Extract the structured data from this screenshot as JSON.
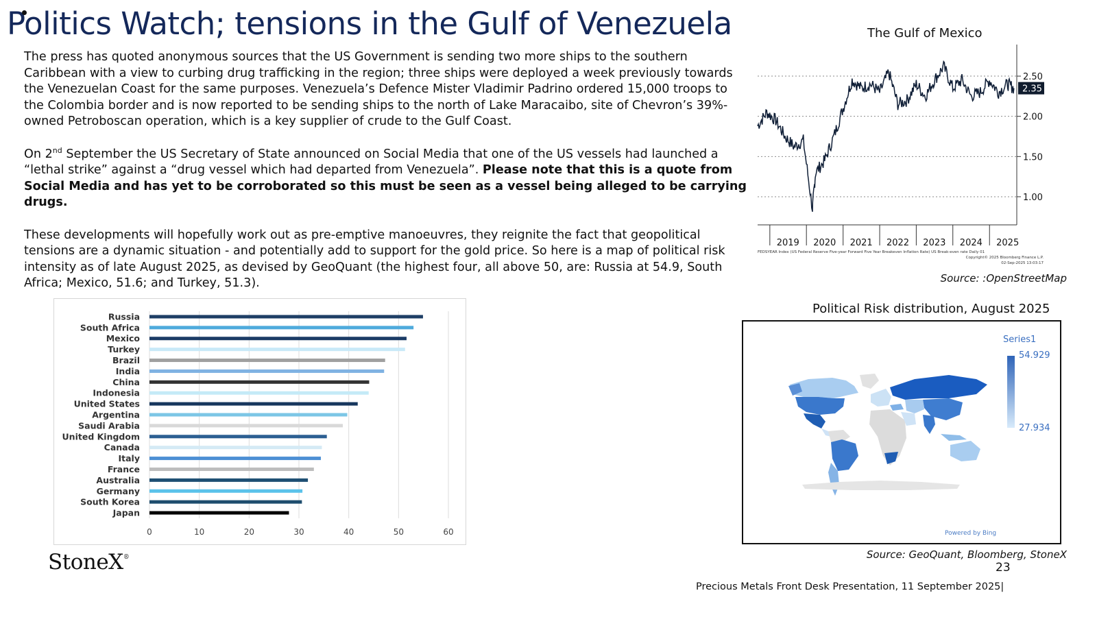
{
  "title": "Politics Watch; tensions in the Gulf of Venezuela",
  "paragraph1": "The press has quoted anonymous sources that the US Government is sending two more ships to the southern Caribbean with a view to curbing drug trafficking in the region; three ships were deployed a week previously towards the Venezuelan Coast for the same purposes. Venezuela’s Defence Mister Vladimir Padrino ordered 15,000 troops to the Colombia border and is now reported to be sending ships to the north of Lake Maracaibo, site of Chevron’s 39%-owned Petroboscan operation, which is a key supplier of crude to the Gulf Coast.",
  "paragraph2": {
    "prefix": "On 2",
    "sup": "nd",
    "text": " September the US Secretary of State announced on Social Media that one of the US vessels had  launched a “lethal strike” against a “drug vessel which had departed from Venezuela”.  ",
    "bold": "Please note that this is a quote from Social Media and has yet to be corroborated so this must be seen as a vessel being alleged to be carrying drugs."
  },
  "paragraph3": "These  developments will hopefully work out as pre-emptive manoeuvres,  they reignite the fact that geopolitical tensions are a dynamic situation - and potentially add to support for the gold price.  So here is a map of political risk intensity as of late August 2025, as devised by GeoQuant (the highest four, all above 50, are: Russia at 54.9, South Africa; Mexico, 51.6; and Turkey, 51.3).",
  "line_chart": {
    "title": "The Gulf of Mexico",
    "last_value_label": "2.35",
    "footnote_lines": [
      "FEDSYEAR Index (US Federal Reserve Five-year Forward Five Year Breakeven Inflation Rate) US Break-even rate  Daily 01",
      "Copyright© 2025 Bloomberg Finance L.P.",
      "02-Sep-2025 13:03:17"
    ],
    "source": "Source: :OpenStreetMap"
  },
  "map": {
    "title": "Political Risk distribution, August 2025",
    "legend_title": "Series1",
    "legend_max": "54.929",
    "legend_min": "27.934",
    "powered_by": "Powered by Bing",
    "source": "Source: GeoQuant, Bloomberg, StoneX"
  },
  "page_number": "23",
  "footer": "Precious Metals Front Desk Presentation, 11 September 2025|",
  "logo_text": "StoneX",
  "logo_mark": "®",
  "chart_data": [
    {
      "type": "line",
      "title": "The Gulf of Mexico",
      "x_tick_labels": [
        "2019",
        "2020",
        "2021",
        "2022",
        "2023",
        "2024",
        "2025"
      ],
      "y_tick_labels": [
        "1.00",
        "1.50",
        "2.00",
        "2.50"
      ],
      "ylim": [
        0.65,
        2.85
      ],
      "grid": true,
      "series": [
        {
          "x": [
            "2018-09",
            "2018-12",
            "2019-03",
            "2019-06",
            "2019-09",
            "2019-12",
            "2020-03",
            "2020-04",
            "2020-07",
            "2020-10",
            "2021-01",
            "2021-04",
            "2021-07",
            "2021-10",
            "2022-01",
            "2022-04",
            "2022-07",
            "2022-10",
            "2023-01",
            "2023-04",
            "2023-07",
            "2023-10",
            "2024-01",
            "2024-04",
            "2024-07",
            "2024-10",
            "2025-01",
            "2025-04",
            "2025-07",
            "2025-09"
          ],
          "values": [
            1.88,
            2.05,
            1.95,
            1.75,
            1.62,
            1.7,
            0.85,
            1.3,
            1.45,
            1.75,
            2.1,
            2.45,
            2.35,
            2.4,
            2.3,
            2.55,
            2.15,
            2.2,
            2.4,
            2.25,
            2.45,
            2.62,
            2.35,
            2.45,
            2.25,
            2.3,
            2.45,
            2.3,
            2.4,
            2.35
          ]
        }
      ]
    },
    {
      "type": "bar",
      "orientation": "horizontal",
      "categories": [
        "Russia",
        "South Africa",
        "Mexico",
        "Turkey",
        "Brazil",
        "India",
        "China",
        "Indonesia",
        "United States",
        "Argentina",
        "Saudi Arabia",
        "United Kingdom",
        "Canada",
        "Italy",
        "France",
        "Australia",
        "Germany",
        "South Korea",
        "Japan"
      ],
      "values": [
        54.9,
        53.0,
        51.6,
        51.3,
        47.3,
        47.1,
        44.1,
        44.0,
        41.8,
        39.7,
        38.8,
        35.6,
        34.6,
        34.4,
        33.0,
        31.8,
        30.7,
        30.6,
        28.0
      ],
      "colors": [
        "#1f3f66",
        "#4eaadc",
        "#1b3b66",
        "#c9e9f8",
        "#a0a0a0",
        "#7fb2e2",
        "#333333",
        "#c4eaf7",
        "#17375e",
        "#7cc6e6",
        "#d9d9d9",
        "#2c5f92",
        "#d4eaf5",
        "#4d8fd4",
        "#bdbdbd",
        "#1e4f73",
        "#5ac2ea",
        "#1e4d6e",
        "#050505"
      ],
      "x_tick_labels": [
        "0",
        "10",
        "20",
        "30",
        "40",
        "50",
        "60"
      ],
      "xlim": [
        0,
        60
      ],
      "grid": true
    }
  ]
}
